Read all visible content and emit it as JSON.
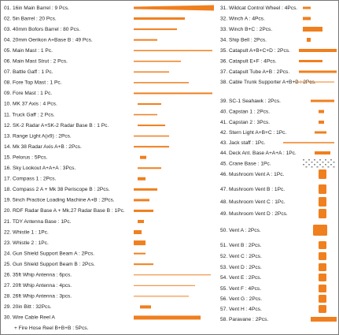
{
  "parts": {
    "left": [
      "01. 16in Main Barrel : 9 Pcs.",
      "02. 5in Barrel : 20 Pcs.",
      "03. 40mm Bofors Barrel : 80 Pcs.",
      "04. 20mm Oerikon A+Base B : 49 Pcs.",
      "05. Main Mast : 1 Pc.",
      "06. Main Mast Strut : 2 Pcs.",
      "07. Battle Gaff : 1 Pc.",
      "08. Fore Top Mast : 1 Pc.",
      "09. Fore  Mast : 1 Pc.",
      "10. MK 37 Axis : 4 Pcs.",
      "11. Truck Gaff : 2 Pcs.",
      "12. SK-2 Radar A+SK-2 Radar Base B : 1 Pc.",
      "13. Range Light A(x9) : 2Pcs.",
      "14. Mk 38 Radar Axis A+B : 2Pcs.",
      "15. Pelorus : 5Pcs.",
      "16. Sky Lookout A+A+A : 3Pcs.",
      "17. Compass 1 : 2Pcs.",
      "18. Compass 2 A + Mk 38 Periscope B : 2Pcs.",
      "19. 5inch Practice Loading Machine A+B : 2Pcs.",
      "20. RDF Radar Base A + Mk.27 Radar Base B : 1Pc.",
      "21. TDY Antenna Base : 1Pc.",
      "22. Whistle 1 : 1Pc.",
      "23. Whistle 2 : 1Pc.",
      "24. Gun Shield Support Beam A : 2Pcs.",
      "25. Gun Shield Support Beam B : 2Pcs.",
      "26. 35ft Whip Antenna  : 6pcs.",
      "27. 20ft Whip Antenna  : 4pcs.",
      "28. 26ft Whip Antenna  : 3pcs.",
      "29. 20in Bitt : 32Pcs.",
      "30. Wire Cable Reel A",
      "+ Fire Hose Reel B+B+B : 5Pcs."
    ],
    "right": [
      "31. Wildcat Control Wheel : 4Pcs.",
      "32. Winch A : 4Pcs.",
      "33. Winch B+C : 2Pcs.",
      "34. Ship Bell : 2Pcs.",
      "35. Catapult A+B+C+D : 2Pcs.",
      "36. Catapult E+F : 4Pcs.",
      "37. Catapult Tube A+B : 2Pcs.",
      "38. Cable Trunk Supporter A+B+B : 2Pcs.",
      "39. SC-1 Seahawk : 2Pcs.",
      "40. Capstan 1 : 2Pcs.",
      "41. Capstan 2 : 3Pcs.",
      "42. Stern Light A+B+C : 1Pc.",
      "43. Jack staff : 1Pc.",
      "44. Deck Ant. Base A+A+A : 1Pc.",
      "45. Crane Base : 1Pc.",
      "46. Mushroom Vent A : 1Pc.",
      "47. Mushroom Vent B : 1Pc.",
      "48. Mushroom Vent C : 1Pc.",
      "49. Mushroom Vent D : 2Pcs.",
      "50. Vent A : 2Pcs.",
      "51. Vent B : 2Pcs.",
      "52. Vent C : 2Pcs.",
      "53. Vent D : 2Pcs.",
      "54. Vent E : 2Pcs.",
      "55. Vent F : 4Pcs.",
      "56. Vent G : 2Pcs.",
      "57. Vent H : 4Pcs.",
      "58. Paravane : 2Pcs."
    ]
  }
}
